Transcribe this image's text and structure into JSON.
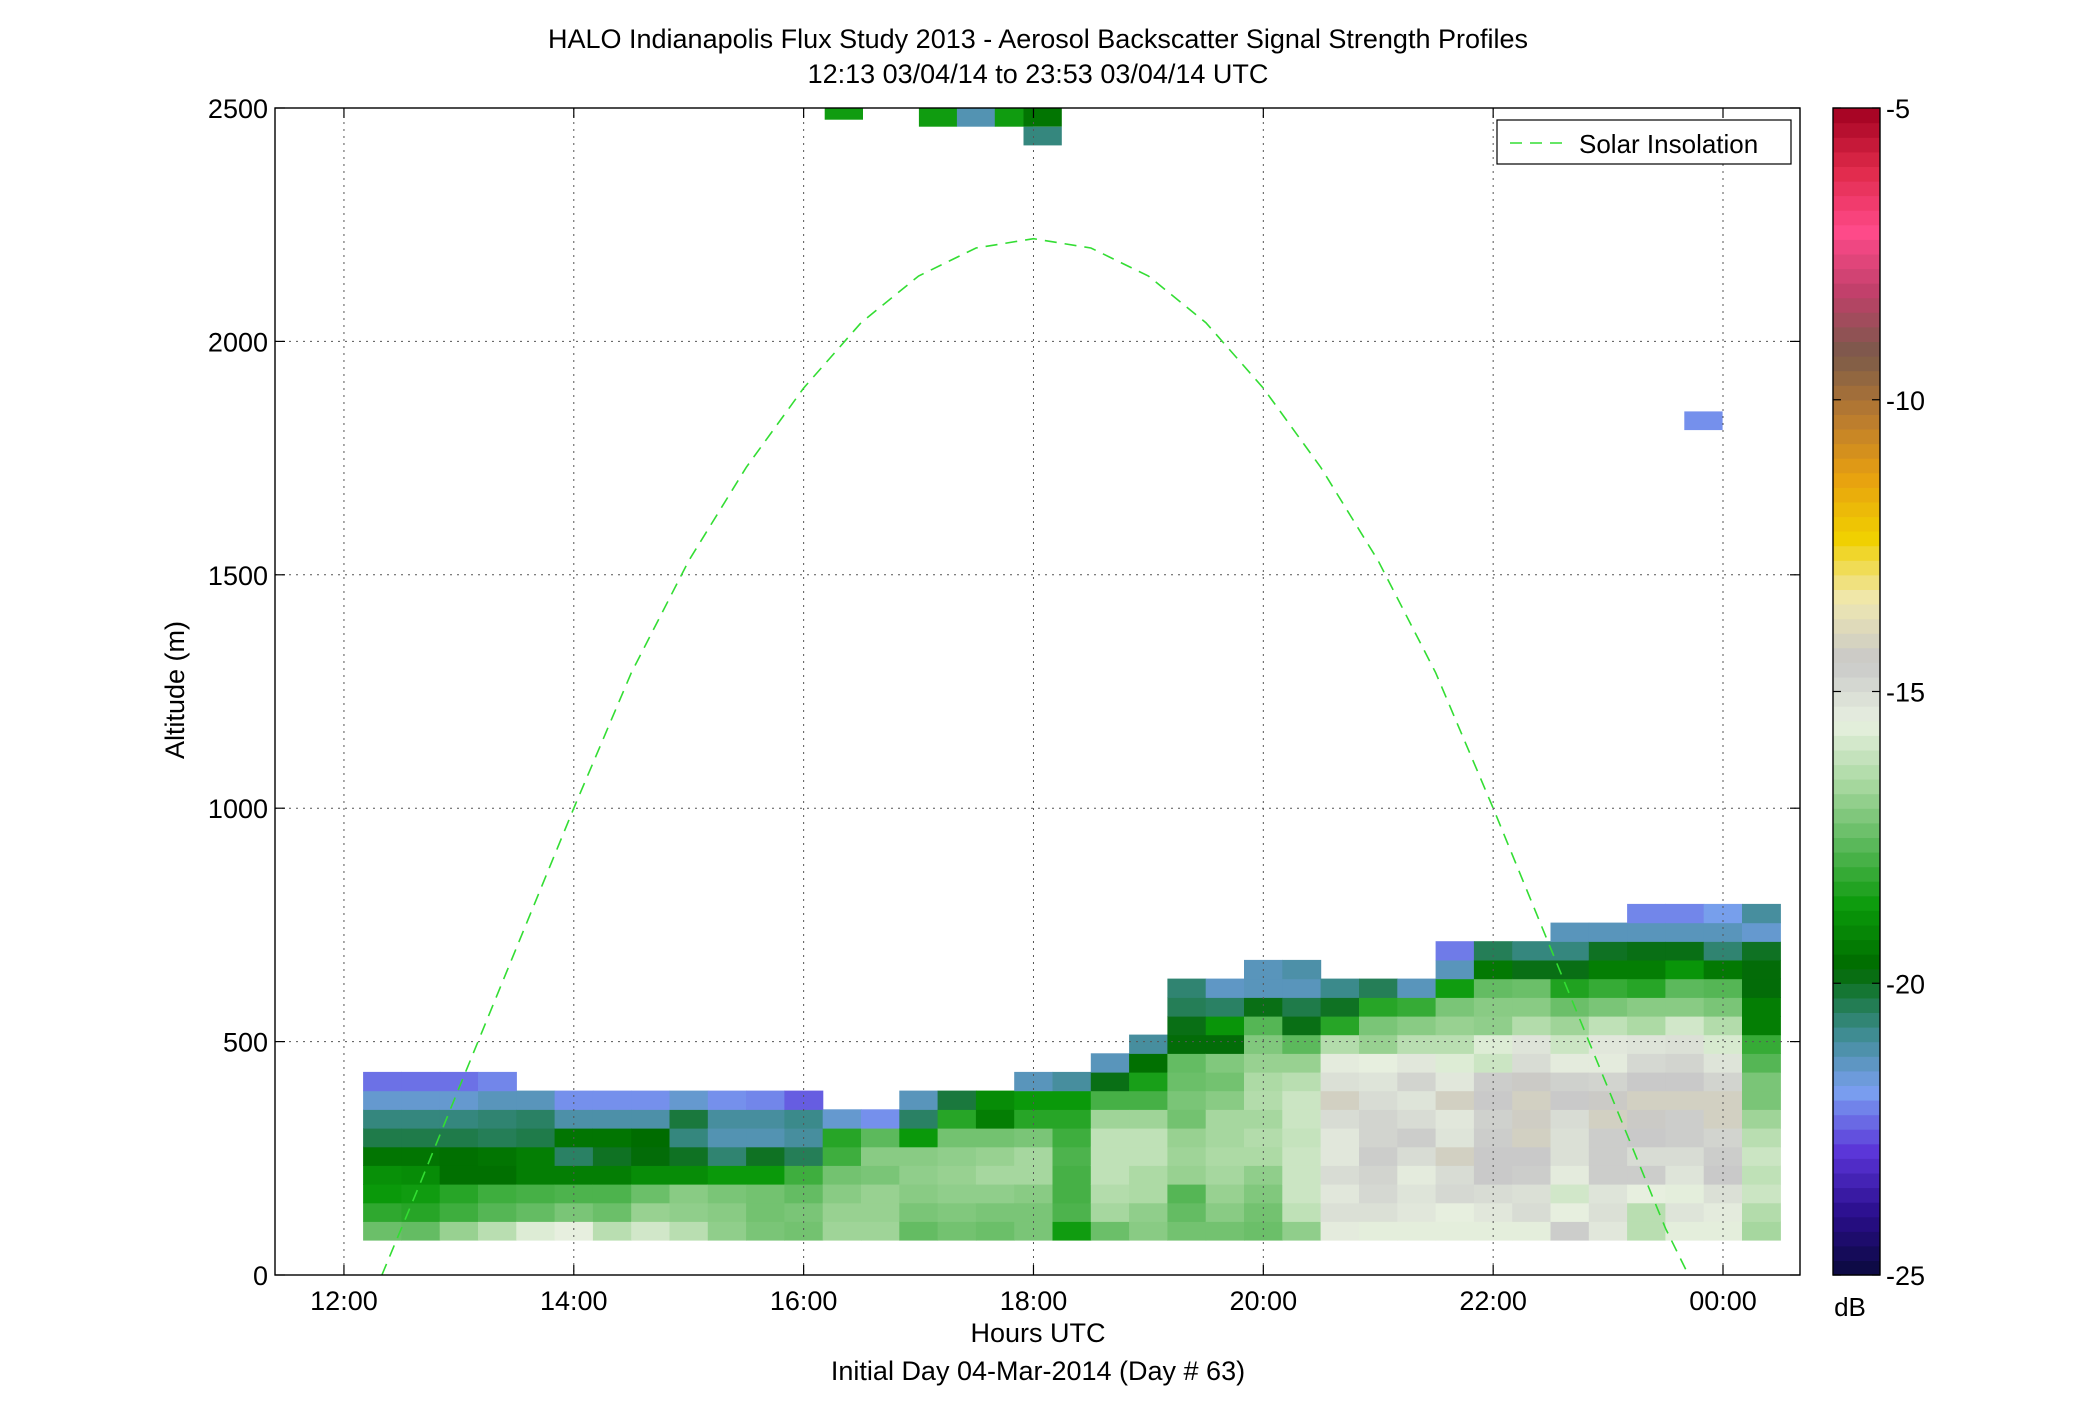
{
  "title_line1": "HALO Indianapolis Flux Study 2013 - Aerosol Backscatter Signal Strength Profiles",
  "title_line2": "12:13 03/04/14 to 23:53 03/04/14  UTC",
  "xlabel": "Hours UTC",
  "xlabel2": "Initial Day 04-Mar-2014 (Day # 63)",
  "ylabel": "Altitude (m)",
  "legend_label": "Solar Insolation",
  "colorbar_unit": "dB",
  "chart_data": {
    "type": "heatmap",
    "title": "HALO Indianapolis Flux Study 2013 - Aerosol Backscatter Signal Strength Profiles",
    "subtitle": "12:13 03/04/14 to 23:53 03/04/14  UTC",
    "xlabel": "Hours UTC",
    "ylabel": "Altitude (m)",
    "xlim": [
      11.4,
      24.67
    ],
    "ylim": [
      0,
      2500
    ],
    "x_ticks": [
      12,
      14,
      16,
      18,
      20,
      22,
      24
    ],
    "x_tick_labels": [
      "12:00",
      "14:00",
      "16:00",
      "18:00",
      "20:00",
      "22:00",
      "00:00"
    ],
    "y_ticks": [
      0,
      500,
      1000,
      1500,
      2000,
      2500
    ],
    "y_tick_labels": [
      "0",
      "500",
      "1000",
      "1500",
      "2000",
      "2500"
    ],
    "grid": true,
    "legend_position": "top-right",
    "colorbar": {
      "range": [
        -25,
        -5
      ],
      "ticks": [
        -5,
        -10,
        -15,
        -20,
        -25
      ],
      "tick_labels": [
        "-5",
        "-10",
        "-15",
        "-20",
        "-25"
      ],
      "unit": "dB",
      "colors": [
        "#0a0a3c",
        "#2a0e8c",
        "#5a34d8",
        "#7aa0f0",
        "#3a8a8a",
        "#006a00",
        "#0a9a0a",
        "#5ab85a",
        "#a8d8a0",
        "#e8f0e0",
        "#c8c8c8",
        "#f0e8b0",
        "#f0d000",
        "#e8a010",
        "#b87a30",
        "#7a5a4a",
        "#c0406a",
        "#ff4a8a",
        "#e02a4a",
        "#a00020"
      ]
    },
    "time_start_hours": 12.333,
    "time_step_hours": 0.3333,
    "altitude_start_m": 75,
    "altitude_step_m": 40,
    "profiles": [
      {
        "col": 0,
        "values": [
          -17.4,
          -18.2,
          -18.7,
          -18.9,
          -19.5,
          -20.3,
          -20.7,
          -21.5,
          -22.3
        ]
      },
      {
        "col": 1,
        "values": [
          -17.5,
          -18.3,
          -18.6,
          -19.0,
          -19.5,
          -20.3,
          -20.7,
          -21.5,
          -22.3
        ]
      },
      {
        "col": 2,
        "values": [
          -16.8,
          -18.0,
          -18.3,
          -19.6,
          -19.6,
          -20.3,
          -20.7,
          -21.5,
          -22.3
        ]
      },
      {
        "col": 3,
        "values": [
          -16.3,
          -17.7,
          -18.0,
          -19.6,
          -19.5,
          -20.4,
          -20.6,
          -21.3,
          -22.1
        ]
      },
      {
        "col": 4,
        "values": [
          -15.7,
          -17.5,
          -17.9,
          -19.3,
          -19.3,
          -20.3,
          -20.5,
          -21.3
        ]
      },
      {
        "col": 5,
        "values": [
          -15.5,
          -17.2,
          -17.8,
          -19.3,
          -20.5,
          -19.5,
          -21.1,
          -22.0
        ]
      },
      {
        "col": 6,
        "values": [
          -16.3,
          -17.4,
          -17.8,
          -19.3,
          -20.0,
          -19.5,
          -21.1,
          -22.0
        ]
      },
      {
        "col": 7,
        "values": [
          -15.9,
          -16.8,
          -17.4,
          -19.0,
          -19.8,
          -19.7,
          -21.1,
          -22.0
        ]
      },
      {
        "col": 8,
        "values": [
          -16.3,
          -16.9,
          -17.0,
          -19.0,
          -20.0,
          -20.7,
          -20.2,
          -21.5
        ]
      },
      {
        "col": 9,
        "values": [
          -16.9,
          -17.0,
          -17.2,
          -18.7,
          -20.6,
          -21.2,
          -21.0,
          -22.0
        ]
      },
      {
        "col": 10,
        "values": [
          -17.2,
          -17.3,
          -17.3,
          -18.7,
          -20.0,
          -21.2,
          -21.0,
          -22.1
        ]
      },
      {
        "col": 11,
        "values": [
          -17.3,
          -17.2,
          -17.5,
          -18.0,
          -20.4,
          -21.0,
          -20.8,
          -22.5
        ]
      },
      {
        "col": 12,
        "values": [
          -16.7,
          -16.8,
          -17.0,
          -17.3,
          -18.0,
          -18.3,
          -21.5
        ]
      },
      {
        "col": 13,
        "values": [
          -16.7,
          -16.8,
          -16.8,
          -17.2,
          -17.0,
          -17.6,
          -22.0
        ]
      },
      {
        "col": 14,
        "values": [
          -17.5,
          -17.2,
          -17.0,
          -16.9,
          -17.0,
          -18.7,
          -20.5,
          -21.3
        ]
      },
      {
        "col": 15,
        "values": [
          -17.3,
          -17.1,
          -16.9,
          -16.8,
          -16.9,
          -17.3,
          -18.3,
          -20.2
        ]
      },
      {
        "col": 16,
        "values": [
          -17.4,
          -17.2,
          -16.9,
          -16.6,
          -16.8,
          -17.3,
          -19.3,
          -19.0
        ]
      },
      {
        "col": 17,
        "values": [
          -17.2,
          -17.2,
          -17.0,
          -16.6,
          -16.6,
          -17.2,
          -18.3,
          -18.7,
          -21.3
        ]
      },
      {
        "col": 18,
        "values": [
          -18.6,
          -17.8,
          -17.9,
          -17.9,
          -17.8,
          -18.0,
          -18.3,
          -18.7,
          -21.0
        ]
      },
      {
        "col": 19,
        "values": [
          -17.4,
          -16.6,
          -16.4,
          -16.2,
          -16.2,
          -16.2,
          -16.7,
          -17.9,
          -19.9,
          -21.3
        ]
      },
      {
        "col": 20,
        "values": [
          -17.0,
          -16.9,
          -16.5,
          -16.5,
          -16.2,
          -16.2,
          -16.7,
          -17.9,
          -18.5,
          -19.6,
          -21.0
        ]
      },
      {
        "col": 21,
        "values": [
          -17.3,
          -17.5,
          -17.7,
          -16.8,
          -16.7,
          -16.8,
          -17.3,
          -17.2,
          -17.4,
          -17.5,
          -19.8,
          -19.9,
          -20.4,
          -20.6
        ]
      },
      {
        "col": 22,
        "values": [
          -17.3,
          -17.0,
          -16.8,
          -16.6,
          -16.5,
          -16.6,
          -16.6,
          -17.0,
          -17.3,
          -17.1,
          -19.8,
          -18.8,
          -20.5,
          -21.4
        ]
      },
      {
        "col": 23,
        "values": [
          -17.4,
          -17.3,
          -17.1,
          -16.9,
          -16.5,
          -16.4,
          -16.6,
          -16.4,
          -16.5,
          -16.8,
          -17.1,
          -17.7,
          -19.9,
          -21.3,
          -21.3
        ]
      },
      {
        "col": 24,
        "values": [
          -16.9,
          -16.2,
          -16.0,
          -16.0,
          -16.0,
          -16.1,
          -16.0,
          -16.0,
          -16.3,
          -16.8,
          -17.6,
          -19.9,
          -20.3,
          -21.3,
          -21.1
        ]
      },
      {
        "col": 25,
        "values": [
          -15.4,
          -15.1,
          -15.3,
          -15.0,
          -15.3,
          -15.3,
          -15.0,
          -14.2,
          -15.1,
          -15.4,
          -16.4,
          -18.3,
          -20.0,
          -20.8
        ]
      },
      {
        "col": 26,
        "values": [
          -15.6,
          -15.1,
          -14.9,
          -14.8,
          -14.6,
          -14.8,
          -14.8,
          -15.0,
          -15.2,
          -15.5,
          -16.8,
          -17.2,
          -18.3,
          -20.4
        ]
      },
      {
        "col": 27,
        "values": [
          -15.6,
          -15.3,
          -15.2,
          -15.4,
          -15.0,
          -14.6,
          -15.0,
          -15.2,
          -14.8,
          -15.3,
          -16.3,
          -17.0,
          -18.1,
          -21.3
        ]
      },
      {
        "col": 28,
        "values": [
          -15.6,
          -15.5,
          -14.9,
          -15.0,
          -14.2,
          -15.2,
          -15.3,
          -14.2,
          -15.3,
          -15.7,
          -16.3,
          -16.8,
          -17.2,
          -18.6,
          -21.3,
          -22.2
        ]
      },
      {
        "col": 29,
        "values": [
          -15.6,
          -15.3,
          -15.0,
          -14.5,
          -14.5,
          -14.6,
          -14.7,
          -14.5,
          -14.6,
          -16.0,
          -15.7,
          -16.9,
          -17.0,
          -17.5,
          -19.4,
          -20.4
        ]
      },
      {
        "col": 30,
        "values": [
          -15.6,
          -15.0,
          -15.1,
          -14.6,
          -14.5,
          -14.2,
          -14.3,
          -14.2,
          -14.4,
          -15.0,
          -15.2,
          -16.4,
          -17.0,
          -17.4,
          -19.9,
          -20.7
        ]
      },
      {
        "col": 31,
        "values": [
          -14.6,
          -15.5,
          -15.9,
          -15.4,
          -15.1,
          -15.1,
          -15.0,
          -14.5,
          -14.7,
          -15.4,
          -16.0,
          -16.7,
          -17.4,
          -18.4,
          -19.9,
          -20.7,
          -21.3
        ]
      },
      {
        "col": 32,
        "values": [
          -15.3,
          -15.1,
          -15.2,
          -14.6,
          -14.6,
          -14.6,
          -14.2,
          -14.4,
          -14.8,
          -15.4,
          -15.3,
          -16.2,
          -17.2,
          -18.1,
          -19.3,
          -20.0,
          -21.3
        ]
      },
      {
        "col": 33,
        "values": [
          -16.3,
          -16.3,
          -15.5,
          -14.6,
          -15.0,
          -14.5,
          -14.4,
          -14.2,
          -14.5,
          -14.9,
          -15.2,
          -16.5,
          -17.0,
          -18.3,
          -19.3,
          -19.9,
          -21.3,
          -22.1
        ]
      },
      {
        "col": 34,
        "values": [
          -15.6,
          -15.2,
          -15.6,
          -15.2,
          -15.0,
          -14.6,
          -14.6,
          -14.2,
          -14.5,
          -14.8,
          -15.1,
          -15.9,
          -17.0,
          -17.6,
          -18.8,
          -19.9,
          -21.3,
          -22.1
        ]
      },
      {
        "col": 35,
        "values": [
          -15.6,
          -15.4,
          -15.1,
          -14.5,
          -14.6,
          -14.8,
          -14.2,
          -14.2,
          -14.8,
          -15.2,
          -15.8,
          -16.4,
          -17.2,
          -17.7,
          -19.4,
          -20.6,
          -21.3,
          -21.8
        ]
      },
      {
        "col": 36,
        "values": [
          -16.6,
          -16.4,
          -16.0,
          -16.2,
          -16.0,
          -16.3,
          -16.7,
          -17.2,
          -17.2,
          -17.7,
          -18.1,
          -19.3,
          -19.3,
          -19.8,
          -19.8,
          -20.0,
          -21.5,
          -21.0
        ]
      }
    ],
    "isolated_cells": [
      {
        "time_hours": 16.35,
        "altitude_m": 2495,
        "value_db": -18.6
      },
      {
        "time_hours": 17.17,
        "altitude_m": 2480,
        "value_db": -18.6
      },
      {
        "time_hours": 17.5,
        "altitude_m": 2480,
        "value_db": -21.2
      },
      {
        "time_hours": 17.83,
        "altitude_m": 2480,
        "value_db": -18.6
      },
      {
        "time_hours": 18.08,
        "altitude_m": 2480,
        "value_db": -19.5
      },
      {
        "time_hours": 18.08,
        "altitude_m": 2440,
        "value_db": -20.7
      },
      {
        "time_hours": 23.83,
        "altitude_m": 1830,
        "value_db": -22.0
      }
    ],
    "solar_insolation_line": {
      "name": "Solar Insolation",
      "x": [
        12.33,
        12.67,
        13.0,
        13.5,
        14.0,
        14.5,
        15.0,
        15.5,
        16.0,
        16.5,
        17.0,
        17.5,
        18.0,
        18.5,
        19.0,
        19.5,
        20.0,
        20.5,
        21.0,
        21.5,
        22.0,
        22.5,
        23.0,
        23.5,
        23.7
      ],
      "y": [
        0,
        200,
        400,
        700,
        1000,
        1290,
        1530,
        1730,
        1900,
        2040,
        2140,
        2200,
        2220,
        2200,
        2140,
        2040,
        1900,
        1730,
        1530,
        1290,
        1000,
        700,
        400,
        100,
        0
      ]
    }
  }
}
